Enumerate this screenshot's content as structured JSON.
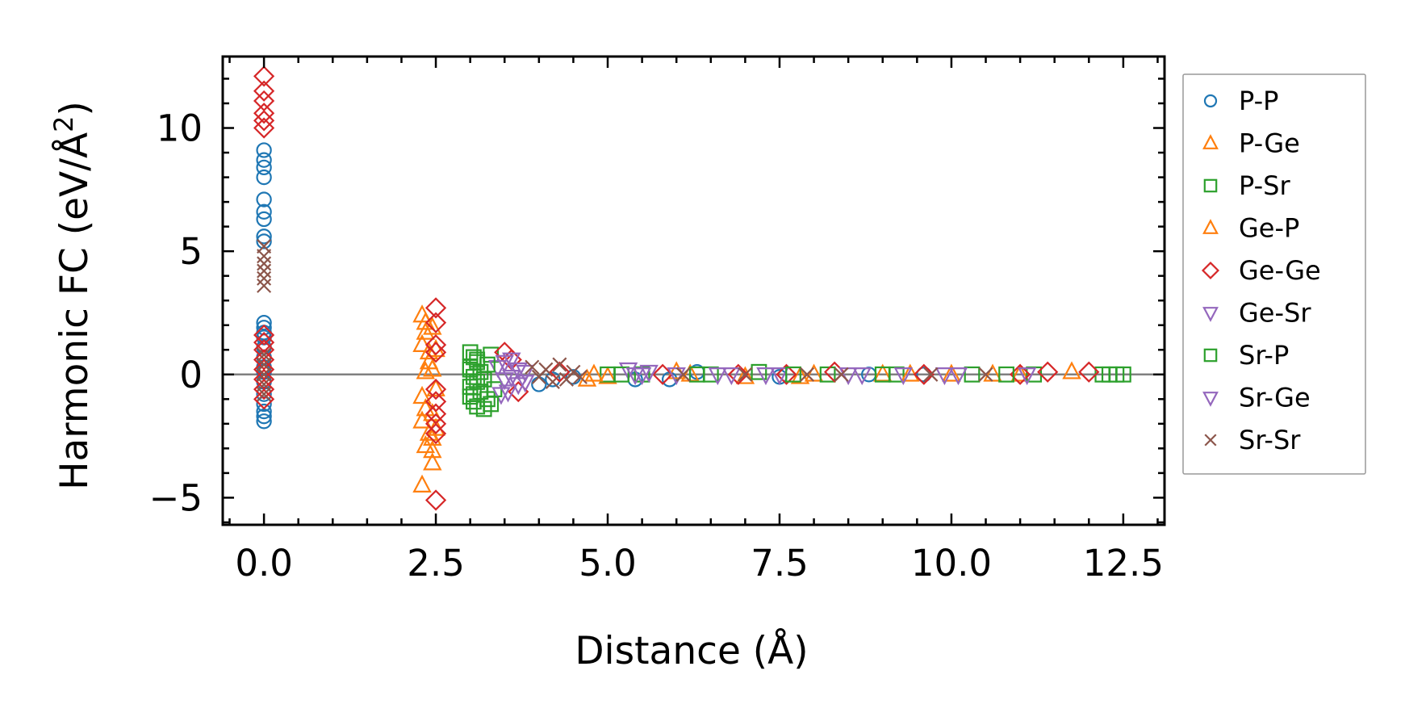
{
  "chart_data": {
    "type": "scatter",
    "title": "",
    "xlabel": "Distance (Å)",
    "ylabel": "Harmonic FC (eV/Å",
    "ylabel_sup": "2",
    "ylabel_close": ")",
    "xlim": [
      -0.6,
      13.1
    ],
    "ylim": [
      -6.1,
      12.9
    ],
    "x_ticks": [
      0.0,
      2.5,
      5.0,
      7.5,
      10.0,
      12.5
    ],
    "x_tick_labels": [
      "0.0",
      "2.5",
      "5.0",
      "7.5",
      "10.0",
      "12.5"
    ],
    "y_ticks": [
      -5,
      0,
      5,
      10
    ],
    "y_tick_labels": [
      "−5",
      "0",
      "5",
      "10"
    ],
    "x_minor_step": 0.5,
    "y_minor_step": 1,
    "reference_line_y": 0,
    "legend_position": "outside-right",
    "series": [
      {
        "name": "P-P",
        "marker": "circle",
        "color": "#1f77b4",
        "points": [
          [
            0,
            9.1
          ],
          [
            0,
            8.7
          ],
          [
            0,
            8.4
          ],
          [
            0,
            8.0
          ],
          [
            0,
            7.1
          ],
          [
            0,
            6.6
          ],
          [
            0,
            6.3
          ],
          [
            0,
            5.6
          ],
          [
            0,
            5.4
          ],
          [
            0,
            2.1
          ],
          [
            0,
            1.9
          ],
          [
            0,
            1.7
          ],
          [
            0,
            1.5
          ],
          [
            0,
            1.1
          ],
          [
            0,
            0.7
          ],
          [
            0,
            0.3
          ],
          [
            0,
            0.1
          ],
          [
            0,
            -0.3
          ],
          [
            0,
            -0.8
          ],
          [
            0,
            -1.2
          ],
          [
            0,
            -1.5
          ],
          [
            0,
            -1.7
          ],
          [
            0,
            -1.9
          ],
          [
            4.0,
            -0.4
          ],
          [
            4.2,
            -0.2
          ],
          [
            4.5,
            -0.1
          ],
          [
            5.4,
            -0.2
          ],
          [
            5.9,
            -0.2
          ],
          [
            6.3,
            0.1
          ],
          [
            7.5,
            -0.1
          ],
          [
            8.8,
            0.0
          ],
          [
            9.6,
            0.0
          ]
        ]
      },
      {
        "name": "P-Ge",
        "marker": "triangle-up",
        "color": "#ff7f0e",
        "points": [
          [
            2.3,
            2.4
          ],
          [
            2.35,
            2.1
          ],
          [
            2.35,
            1.7
          ],
          [
            2.3,
            1.2
          ],
          [
            2.4,
            0.9
          ],
          [
            2.4,
            0.5
          ],
          [
            2.35,
            0.1
          ],
          [
            2.3,
            -0.9
          ],
          [
            2.35,
            -1.4
          ],
          [
            2.3,
            -1.9
          ],
          [
            2.4,
            -2.4
          ],
          [
            2.35,
            -2.9
          ],
          [
            2.45,
            -3.1
          ],
          [
            2.45,
            -3.6
          ],
          [
            2.3,
            -4.5
          ],
          [
            4.7,
            -0.2
          ],
          [
            5.0,
            -0.1
          ],
          [
            6.2,
            0.0
          ],
          [
            7.0,
            -0.1
          ],
          [
            8.0,
            0.0
          ],
          [
            9.0,
            0.0
          ],
          [
            10.0,
            0.0
          ],
          [
            11.0,
            0.0
          ],
          [
            11.75,
            0.1
          ]
        ]
      },
      {
        "name": "P-Sr",
        "marker": "square",
        "color": "#2ca02c",
        "points": [
          [
            3.0,
            0.9
          ],
          [
            3.05,
            0.7
          ],
          [
            3.1,
            0.5
          ],
          [
            3.0,
            0.3
          ],
          [
            3.15,
            0.1
          ],
          [
            3.05,
            -0.1
          ],
          [
            3.1,
            -0.3
          ],
          [
            3.0,
            -0.5
          ],
          [
            3.15,
            -0.7
          ],
          [
            3.0,
            -0.9
          ],
          [
            3.05,
            -1.1
          ],
          [
            3.1,
            -1.3
          ],
          [
            3.2,
            -1.4
          ],
          [
            3.25,
            -1.0
          ],
          [
            3.3,
            0.8
          ],
          [
            3.35,
            -0.6
          ],
          [
            5.0,
            0.0
          ],
          [
            5.5,
            0.0
          ],
          [
            6.5,
            0.0
          ],
          [
            7.2,
            0.1
          ],
          [
            8.2,
            0.0
          ],
          [
            9.2,
            0.0
          ],
          [
            10.3,
            0.0
          ],
          [
            11.2,
            0.0
          ],
          [
            12.2,
            0.0
          ],
          [
            12.3,
            0.0
          ],
          [
            12.4,
            0.0
          ],
          [
            12.5,
            0.0
          ]
        ]
      },
      {
        "name": "Ge-P",
        "marker": "triangle-up",
        "color": "#ff7f0e",
        "points": [
          [
            2.45,
            1.9
          ],
          [
            2.5,
            1.0
          ],
          [
            2.45,
            0.2
          ],
          [
            2.5,
            -0.6
          ],
          [
            2.45,
            -1.6
          ],
          [
            2.5,
            -2.2
          ],
          [
            2.45,
            -2.6
          ],
          [
            4.8,
            0.0
          ],
          [
            6.0,
            0.1
          ],
          [
            7.8,
            -0.1
          ],
          [
            9.4,
            0.0
          ],
          [
            10.6,
            0.0
          ]
        ]
      },
      {
        "name": "Ge-Ge",
        "marker": "diamond",
        "color": "#d62728",
        "points": [
          [
            0,
            12.1
          ],
          [
            0,
            11.5
          ],
          [
            0,
            11.1
          ],
          [
            0,
            10.6
          ],
          [
            0,
            10.3
          ],
          [
            0,
            10.0
          ],
          [
            0,
            1.6
          ],
          [
            0,
            1.3
          ],
          [
            0,
            1.0
          ],
          [
            0,
            0.6
          ],
          [
            0,
            0.2
          ],
          [
            0,
            -0.2
          ],
          [
            0,
            -0.6
          ],
          [
            0,
            -1.0
          ],
          [
            2.5,
            2.7
          ],
          [
            2.5,
            2.1
          ],
          [
            2.5,
            1.2
          ],
          [
            2.5,
            0.9
          ],
          [
            2.5,
            -0.6
          ],
          [
            2.5,
            -1.1
          ],
          [
            2.5,
            -1.6
          ],
          [
            2.5,
            -2.0
          ],
          [
            2.5,
            -2.4
          ],
          [
            2.5,
            -5.1
          ],
          [
            3.5,
            0.9
          ],
          [
            3.6,
            0.6
          ],
          [
            3.7,
            -0.7
          ],
          [
            4.3,
            0.1
          ],
          [
            5.8,
            0.0
          ],
          [
            6.9,
            0.0
          ],
          [
            7.6,
            0.0
          ],
          [
            8.3,
            0.1
          ],
          [
            9.6,
            0.0
          ],
          [
            11.0,
            0.0
          ],
          [
            11.4,
            0.1
          ],
          [
            12.0,
            0.1
          ]
        ]
      },
      {
        "name": "Ge-Sr",
        "marker": "triangle-down",
        "color": "#9467bd",
        "points": [
          [
            3.4,
            0.3
          ],
          [
            3.5,
            -0.2
          ],
          [
            3.6,
            0.6
          ],
          [
            3.7,
            -0.4
          ],
          [
            3.8,
            0.1
          ],
          [
            3.45,
            -0.8
          ],
          [
            5.3,
            0.2
          ],
          [
            5.5,
            0.0
          ],
          [
            6.0,
            0.0
          ],
          [
            6.8,
            0.0
          ],
          [
            7.5,
            0.0
          ],
          [
            8.5,
            0.0
          ],
          [
            9.3,
            0.0
          ],
          [
            10.1,
            0.0
          ],
          [
            11.1,
            0.0
          ]
        ]
      },
      {
        "name": "Sr-P",
        "marker": "square",
        "color": "#2ca02c",
        "points": [
          [
            3.0,
            0.2
          ],
          [
            3.05,
            -0.8
          ],
          [
            3.1,
            0.6
          ],
          [
            3.2,
            -0.2
          ],
          [
            3.25,
            0.4
          ],
          [
            3.3,
            -1.2
          ],
          [
            5.2,
            0.0
          ],
          [
            6.3,
            0.0
          ],
          [
            7.7,
            0.0
          ],
          [
            9.0,
            0.0
          ],
          [
            10.8,
            0.0
          ]
        ]
      },
      {
        "name": "Sr-Ge",
        "marker": "triangle-down",
        "color": "#9467bd",
        "points": [
          [
            3.5,
            0.5
          ],
          [
            3.6,
            -0.1
          ],
          [
            3.7,
            0.2
          ],
          [
            3.8,
            -0.3
          ],
          [
            3.55,
            -0.7
          ],
          [
            5.4,
            0.0
          ],
          [
            5.6,
            0.1
          ],
          [
            6.6,
            0.0
          ],
          [
            7.3,
            0.0
          ],
          [
            8.7,
            0.0
          ],
          [
            9.9,
            0.0
          ]
        ]
      },
      {
        "name": "Sr-Sr",
        "marker": "x",
        "color": "#8c564b",
        "points": [
          [
            0,
            5.2
          ],
          [
            0,
            4.8
          ],
          [
            0,
            4.5
          ],
          [
            0,
            4.2
          ],
          [
            0,
            3.9
          ],
          [
            0,
            3.6
          ],
          [
            0,
            0.8
          ],
          [
            0,
            0.4
          ],
          [
            0,
            0.0
          ],
          [
            0,
            -0.4
          ],
          [
            0,
            -0.8
          ],
          [
            3.9,
            0.3
          ],
          [
            4.0,
            -0.1
          ],
          [
            4.1,
            0.2
          ],
          [
            4.2,
            -0.3
          ],
          [
            4.3,
            0.4
          ],
          [
            4.4,
            -0.2
          ],
          [
            4.5,
            0.1
          ],
          [
            4.6,
            -0.1
          ],
          [
            6.1,
            0.0
          ],
          [
            7.0,
            0.0
          ],
          [
            7.9,
            0.0
          ],
          [
            8.4,
            0.0
          ],
          [
            9.7,
            0.0
          ],
          [
            10.5,
            0.0
          ]
        ]
      }
    ]
  }
}
